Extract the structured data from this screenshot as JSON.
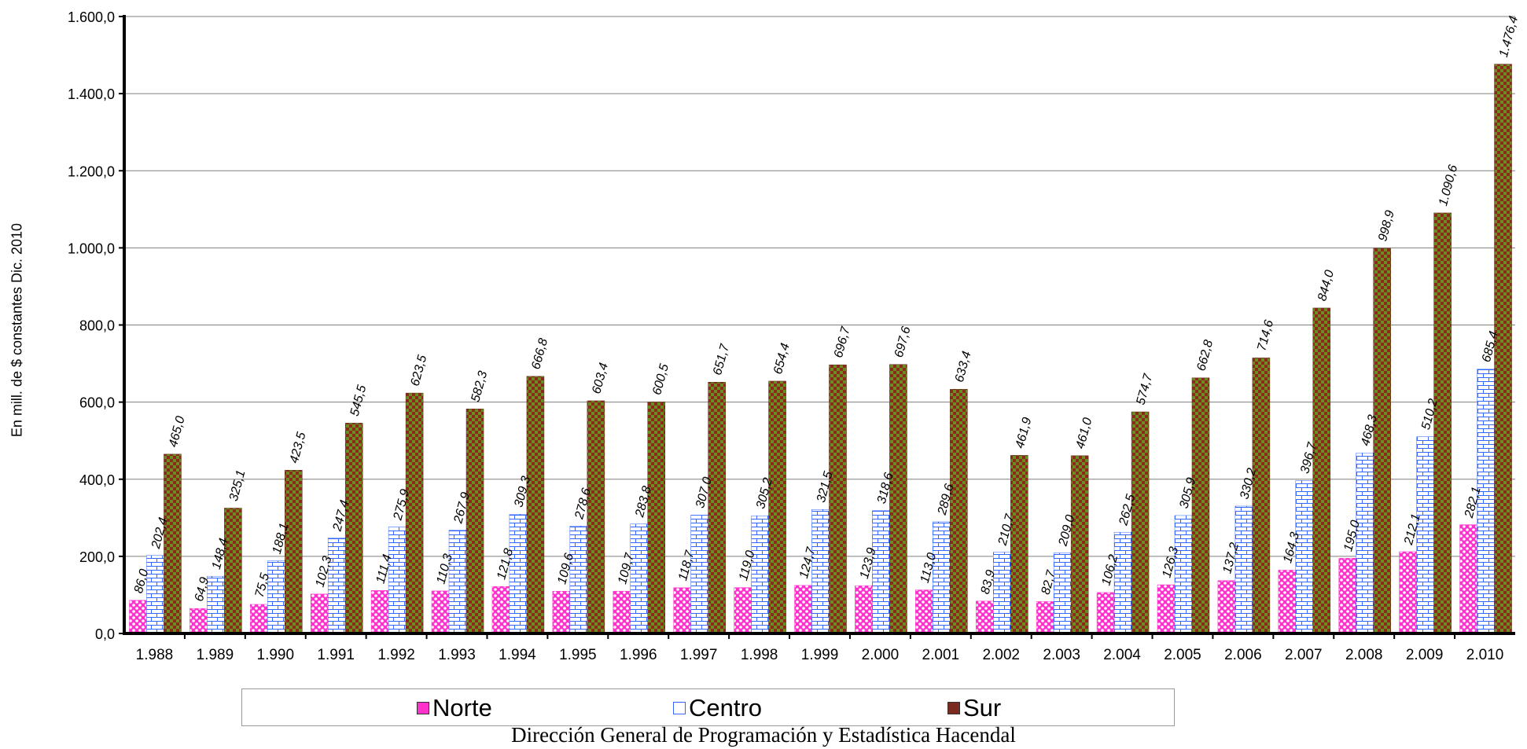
{
  "chart_data": {
    "type": "bar",
    "ylabel": "En mill. de $ constantes Dic. 2010",
    "ylim": [
      0,
      1600
    ],
    "yticks": [
      "0,0",
      "200,0",
      "400,0",
      "600,0",
      "800,0",
      "1.000,0",
      "1.200,0",
      "1.400,0",
      "1.600,0"
    ],
    "grid": true,
    "legend_position": "bottom",
    "categories": [
      "1.988",
      "1.989",
      "1.990",
      "1.991",
      "1.992",
      "1.993",
      "1.994",
      "1.995",
      "1.996",
      "1.997",
      "1.998",
      "1.999",
      "2.000",
      "2.001",
      "2.002",
      "2.003",
      "2.004",
      "2.005",
      "2.006",
      "2.007",
      "2.008",
      "2.009",
      "2.010"
    ],
    "series": [
      {
        "name": "Norte",
        "color": "#ff33cc",
        "values": [
          86.0,
          64.9,
          75.5,
          102.3,
          111.4,
          110.3,
          121.8,
          109.6,
          109.7,
          118.7,
          119.0,
          124.7,
          123.9,
          113.0,
          83.9,
          82.7,
          106.2,
          126.3,
          137.2,
          164.3,
          195.0,
          212.1,
          282.1
        ],
        "labels": [
          "86,0",
          "64,9",
          "75,5",
          "102,3",
          "111,4",
          "110,3",
          "121,8",
          "109,6",
          "109,7",
          "118,7",
          "119,0",
          "124,7",
          "123,9",
          "113,0",
          "83,9",
          "82,7",
          "106,2",
          "126,3",
          "137,2",
          "164,3",
          "195,0",
          "212,1",
          "282,1"
        ]
      },
      {
        "name": "Centro",
        "color": "#3366ff",
        "values": [
          202.4,
          148.4,
          188.1,
          247.4,
          275.9,
          267.9,
          309.3,
          278.6,
          283.8,
          307.0,
          305.2,
          321.5,
          318.6,
          289.6,
          210.7,
          209.0,
          262.5,
          305.9,
          330.2,
          396.7,
          468.3,
          510.2,
          685.4
        ],
        "labels": [
          "202,4",
          "148,4",
          "188,1",
          "247,4",
          "275,9",
          "267,9",
          "309,3",
          "278,6",
          "283,8",
          "307,0",
          "305,2",
          "321,5",
          "318,6",
          "289,6",
          "210,7",
          "209,0",
          "262,5",
          "305,9",
          "330,2",
          "396,7",
          "468,3",
          "510,2",
          "685,4"
        ]
      },
      {
        "name": "Sur",
        "color": "#7a2a1e",
        "values": [
          465.0,
          325.1,
          423.5,
          545.5,
          623.5,
          582.3,
          666.8,
          603.4,
          600.5,
          651.7,
          654.4,
          696.7,
          697.6,
          633.4,
          461.9,
          461.0,
          574.7,
          662.8,
          714.6,
          844.0,
          998.9,
          1090.6,
          1476.4
        ],
        "labels": [
          "465,0",
          "325,1",
          "423,5",
          "545,5",
          "623,5",
          "582,3",
          "666,8",
          "603,4",
          "600,5",
          "651,7",
          "654,4",
          "696,7",
          "697,6",
          "633,4",
          "461,9",
          "461,0",
          "574,7",
          "662,8",
          "714,6",
          "844,0",
          "998,9",
          "1.090,6",
          "1.476,4"
        ]
      }
    ]
  },
  "source": "Dirección General de Programación y Estadística Hacendal"
}
